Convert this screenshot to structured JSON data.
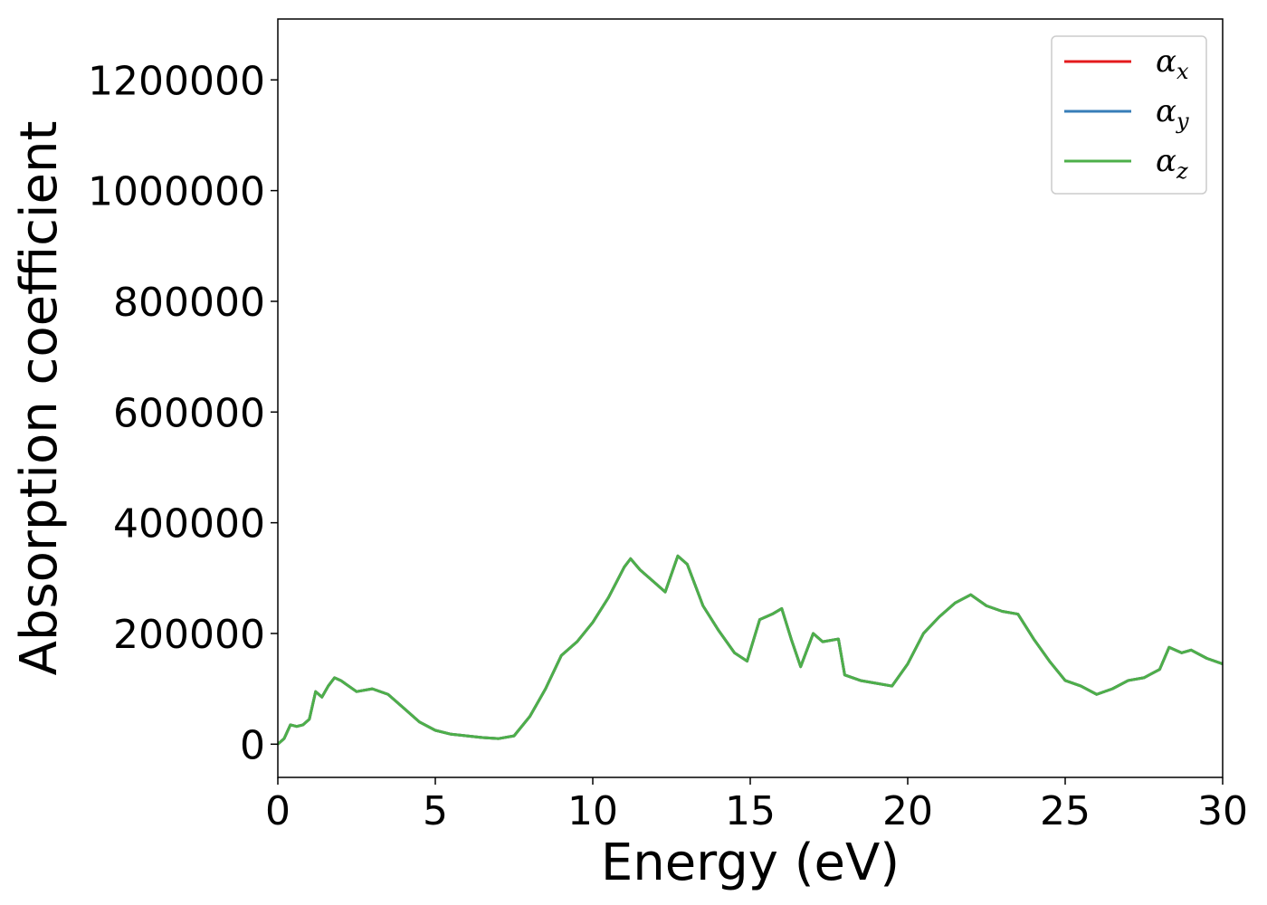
{
  "chart_data": {
    "type": "line",
    "title": "",
    "xlabel": "Energy (eV)",
    "ylabel": "Absorption coefficient",
    "xlim": [
      0,
      30
    ],
    "ylim": [
      -60000,
      1310000
    ],
    "xticks": [
      0,
      5,
      10,
      15,
      20,
      25,
      30
    ],
    "xtick_labels": [
      "0",
      "5",
      "10",
      "15",
      "20",
      "25",
      "30"
    ],
    "yticks": [
      0,
      200000,
      400000,
      600000,
      800000,
      1000000,
      1200000
    ],
    "ytick_labels": [
      "0",
      "200000",
      "400000",
      "600000",
      "800000",
      "1000000",
      "1200000"
    ],
    "grid": false,
    "legend_position": "top-right",
    "x": [
      0,
      0.2,
      0.4,
      0.6,
      0.8,
      1.0,
      1.2,
      1.4,
      1.6,
      1.8,
      2.0,
      2.5,
      3.0,
      3.5,
      4.0,
      4.5,
      5.0,
      5.5,
      6.0,
      6.5,
      7.0,
      7.5,
      8.0,
      8.5,
      9.0,
      9.5,
      10.0,
      10.5,
      11.0,
      11.2,
      11.5,
      12.0,
      12.3,
      12.7,
      13.0,
      13.5,
      14.0,
      14.5,
      14.9,
      15.3,
      15.7,
      16.0,
      16.3,
      16.6,
      17.0,
      17.3,
      17.8,
      18.0,
      18.5,
      19.0,
      19.5,
      20.0,
      20.5,
      21.0,
      21.5,
      22.0,
      22.5,
      23.0,
      23.5,
      24.0,
      24.5,
      25.0,
      25.5,
      26.0,
      26.5,
      27.0,
      27.5,
      28.0,
      28.3,
      28.7,
      29.0,
      29.5,
      30.0
    ],
    "series": [
      {
        "name": "α_x",
        "legend_main": "α",
        "legend_sub": "x",
        "color": "#e41a1c",
        "values": [
          0,
          10000,
          35000,
          32000,
          35000,
          45000,
          95000,
          85000,
          105000,
          120000,
          115000,
          95000,
          100000,
          90000,
          65000,
          40000,
          25000,
          18000,
          15000,
          12000,
          10000,
          15000,
          50000,
          100000,
          160000,
          185000,
          220000,
          265000,
          320000,
          335000,
          315000,
          290000,
          275000,
          340000,
          325000,
          250000,
          205000,
          165000,
          150000,
          225000,
          235000,
          245000,
          190000,
          140000,
          200000,
          185000,
          190000,
          125000,
          115000,
          110000,
          105000,
          145000,
          200000,
          230000,
          255000,
          270000,
          250000,
          240000,
          235000,
          190000,
          150000,
          115000,
          105000,
          90000,
          100000,
          115000,
          120000,
          135000,
          175000,
          165000,
          170000,
          155000,
          145000
        ]
      },
      {
        "name": "α_y",
        "legend_main": "α",
        "legend_sub": "y",
        "color": "#377eb8",
        "values": [
          0,
          10000,
          35000,
          32000,
          35000,
          45000,
          95000,
          85000,
          105000,
          120000,
          115000,
          95000,
          100000,
          90000,
          65000,
          40000,
          25000,
          18000,
          15000,
          12000,
          10000,
          15000,
          50000,
          100000,
          160000,
          185000,
          220000,
          265000,
          320000,
          335000,
          315000,
          290000,
          275000,
          340000,
          325000,
          250000,
          205000,
          165000,
          150000,
          225000,
          235000,
          245000,
          190000,
          140000,
          200000,
          185000,
          190000,
          125000,
          115000,
          110000,
          105000,
          145000,
          200000,
          230000,
          255000,
          270000,
          250000,
          240000,
          235000,
          190000,
          150000,
          115000,
          105000,
          90000,
          100000,
          115000,
          120000,
          135000,
          175000,
          165000,
          170000,
          155000,
          145000
        ]
      },
      {
        "name": "α_z",
        "legend_main": "α",
        "legend_sub": "z",
        "color": "#4daf4a",
        "values": [
          0,
          10000,
          35000,
          32000,
          35000,
          45000,
          95000,
          85000,
          105000,
          120000,
          115000,
          95000,
          100000,
          90000,
          65000,
          40000,
          25000,
          18000,
          15000,
          12000,
          10000,
          15000,
          50000,
          100000,
          160000,
          185000,
          220000,
          265000,
          320000,
          335000,
          315000,
          290000,
          275000,
          340000,
          325000,
          250000,
          205000,
          165000,
          150000,
          225000,
          235000,
          245000,
          190000,
          140000,
          200000,
          185000,
          190000,
          125000,
          115000,
          110000,
          105000,
          145000,
          200000,
          230000,
          255000,
          270000,
          250000,
          240000,
          235000,
          190000,
          150000,
          115000,
          105000,
          90000,
          100000,
          115000,
          120000,
          135000,
          175000,
          165000,
          170000,
          155000,
          145000
        ]
      }
    ]
  }
}
